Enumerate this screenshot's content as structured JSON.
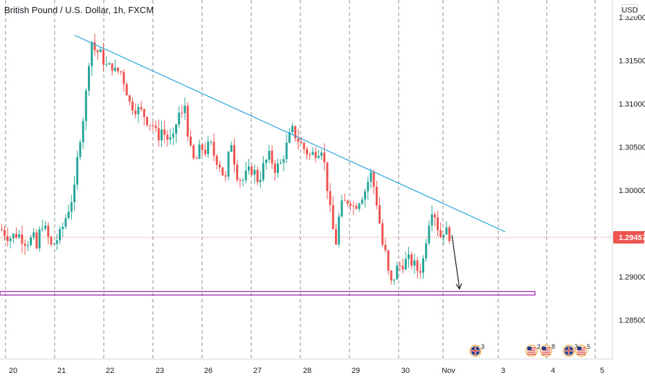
{
  "header": {
    "title": "British Pound / U.S. Dollar, 1h, FXCM",
    "currency": "USD"
  },
  "colors": {
    "up": "#26a69a",
    "down": "#ef5350",
    "trendline": "#2ea7e0",
    "support": "#9c27b0",
    "price_line": "#ef5350",
    "price_label_bg": "#ef5350",
    "grid": "#777777",
    "axis_text": "#131722"
  },
  "events": {
    "items": [
      {
        "icon": "uk-flag-icon",
        "badge": "3"
      },
      {
        "icon": "us-flag-icon",
        "badge": "2"
      },
      {
        "icon": "us-flag-icon",
        "badge": "8"
      },
      {
        "icon": "uk-flag-icon",
        "badge": "3"
      },
      {
        "icon": "us-flag-icon",
        "badge": "5"
      }
    ]
  },
  "chart_data": {
    "type": "candlestick",
    "title": "British Pound / U.S. Dollar, 1h, FXCM",
    "x_tick_labels": [
      "20",
      "21",
      "22",
      "23",
      "26",
      "27",
      "28",
      "29",
      "30",
      "Nov",
      "3",
      "4",
      "5"
    ],
    "y_tick_labels": [
      "1.32000",
      "1.31500",
      "1.31000",
      "1.30500",
      "1.30000",
      "1.29500",
      "1.29000",
      "1.28500"
    ],
    "ylim": [
      1.2805,
      1.3215
    ],
    "last_price": 1.29457,
    "last_price_label": "1.29457",
    "support_level": [
      1.2883,
      1.2879
    ],
    "trendline": {
      "start": {
        "x": "21",
        "y": 1.3179
      },
      "end": {
        "x": "30",
        "y": 1.2952
      }
    },
    "projection_arrow": {
      "from": 1.2948,
      "to": 1.2886
    },
    "grid": true,
    "price_path": [
      [
        0,
        1.2955
      ],
      [
        12,
        1.2945
      ],
      [
        24,
        1.295
      ],
      [
        36,
        1.294
      ],
      [
        48,
        1.2945
      ],
      [
        52,
        1.293
      ],
      [
        58,
        1.2965
      ],
      [
        66,
        1.295
      ],
      [
        72,
        1.2935
      ],
      [
        78,
        1.294
      ],
      [
        86,
        1.295
      ],
      [
        92,
        1.2965
      ],
      [
        100,
        1.2985
      ],
      [
        106,
        1.3
      ],
      [
        112,
        1.305
      ],
      [
        118,
        1.308
      ],
      [
        124,
        1.312
      ],
      [
        128,
        1.316
      ],
      [
        132,
        1.3175
      ],
      [
        136,
        1.316
      ],
      [
        142,
        1.316
      ],
      [
        148,
        1.315
      ],
      [
        154,
        1.314
      ],
      [
        160,
        1.3145
      ],
      [
        166,
        1.3135
      ],
      [
        172,
        1.314
      ],
      [
        180,
        1.312
      ],
      [
        186,
        1.31
      ],
      [
        194,
        1.3095
      ],
      [
        204,
        1.309
      ],
      [
        212,
        1.308
      ],
      [
        220,
        1.3075
      ],
      [
        226,
        1.306
      ],
      [
        232,
        1.307
      ],
      [
        240,
        1.306
      ],
      [
        248,
        1.3055
      ],
      [
        256,
        1.309
      ],
      [
        262,
        1.3085
      ],
      [
        266,
        1.31
      ],
      [
        272,
        1.305
      ],
      [
        280,
        1.303
      ],
      [
        288,
        1.305
      ],
      [
        296,
        1.3045
      ],
      [
        302,
        1.3055
      ],
      [
        308,
        1.304
      ],
      [
        316,
        1.303
      ],
      [
        324,
        1.301
      ],
      [
        332,
        1.306
      ],
      [
        340,
        1.302
      ],
      [
        348,
        1.301
      ],
      [
        356,
        1.302
      ],
      [
        364,
        1.3025
      ],
      [
        372,
        1.301
      ],
      [
        380,
        1.303
      ],
      [
        388,
        1.304
      ],
      [
        396,
        1.3025
      ],
      [
        404,
        1.303
      ],
      [
        412,
        1.305
      ],
      [
        420,
        1.307
      ],
      [
        428,
        1.306
      ],
      [
        436,
        1.305
      ],
      [
        446,
        1.304
      ],
      [
        456,
        1.3045
      ],
      [
        464,
        1.305
      ],
      [
        472,
        1.3
      ],
      [
        478,
        1.296
      ],
      [
        484,
        1.294
      ],
      [
        490,
        1.298
      ],
      [
        496,
        1.2985
      ],
      [
        504,
        1.299
      ],
      [
        510,
        1.298
      ],
      [
        518,
        1.299
      ],
      [
        526,
        1.3
      ],
      [
        534,
        1.302
      ],
      [
        540,
        1.3
      ],
      [
        546,
        1.297
      ],
      [
        550,
        1.294
      ],
      [
        556,
        1.2925
      ],
      [
        562,
        1.289
      ],
      [
        566,
        1.2895
      ],
      [
        572,
        1.291
      ],
      [
        580,
        1.2915
      ],
      [
        588,
        1.292
      ],
      [
        596,
        1.2915
      ],
      [
        604,
        1.2905
      ],
      [
        610,
        1.292
      ],
      [
        616,
        1.2955
      ],
      [
        622,
        1.298
      ],
      [
        628,
        1.297
      ],
      [
        634,
        1.2945
      ],
      [
        640,
        1.2955
      ],
      [
        646,
        1.295
      ],
      [
        650,
        1.2946
      ]
    ]
  }
}
